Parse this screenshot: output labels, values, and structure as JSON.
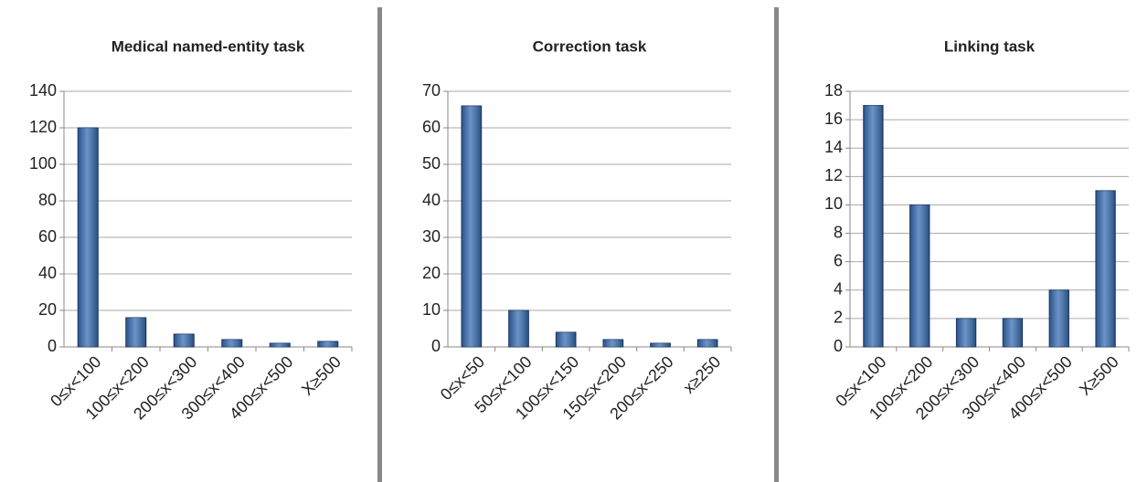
{
  "chart_data": [
    {
      "type": "bar",
      "title": "Medical named-entity task",
      "categories": [
        "0≤x<100",
        "100≤x<200",
        "200≤x<300",
        "300≤x<400",
        "400≤x<500",
        "X≥500"
      ],
      "values": [
        120,
        16,
        7,
        4,
        2,
        3
      ],
      "color": "#3a6fb5",
      "ylim": [
        0,
        140
      ],
      "yticks": [
        0,
        20,
        40,
        60,
        80,
        100,
        120,
        140
      ],
      "grid": true
    },
    {
      "type": "bar",
      "title": "Correction task",
      "categories": [
        "0≤x<50",
        "50≤x<100",
        "100≤x<150",
        "150≤x<200",
        "200≤x<250",
        "x≥250"
      ],
      "values": [
        66,
        10,
        4,
        2,
        1,
        2
      ],
      "color": "#3a6fb5",
      "ylim": [
        0,
        70
      ],
      "yticks": [
        0,
        10,
        20,
        30,
        40,
        50,
        60,
        70
      ],
      "grid": true
    },
    {
      "type": "bar",
      "title": "Linking task",
      "categories": [
        "0≤x<100",
        "100≤x<200",
        "200≤x<300",
        "300≤x<400",
        "400≤x<500",
        "X≥500"
      ],
      "values": [
        17,
        10,
        2,
        2,
        4,
        11
      ],
      "color": "#3a6fb5",
      "ylim": [
        0,
        18
      ],
      "yticks": [
        0,
        2,
        4,
        6,
        8,
        10,
        12,
        14,
        16,
        18
      ],
      "grid": true
    }
  ]
}
